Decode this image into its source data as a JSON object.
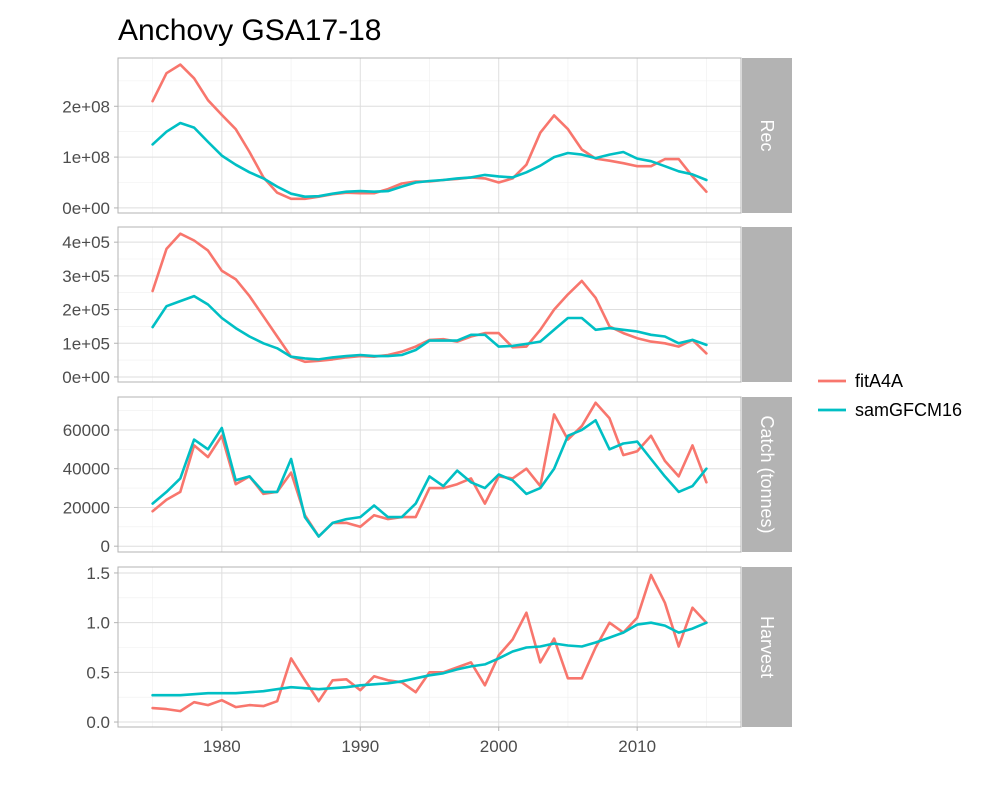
{
  "chart_data": {
    "type": "line",
    "title": "Anchovy GSA17-18",
    "legend": {
      "position": "right",
      "entries": [
        {
          "name": "fitA4A",
          "color": "#F8766D"
        },
        {
          "name": "samGFCM16",
          "color": "#00BFC4"
        }
      ]
    },
    "x": [
      1975,
      1976,
      1977,
      1978,
      1979,
      1980,
      1981,
      1982,
      1983,
      1984,
      1985,
      1986,
      1987,
      1988,
      1989,
      1990,
      1991,
      1992,
      1993,
      1994,
      1995,
      1996,
      1997,
      1998,
      1999,
      2000,
      2001,
      2002,
      2003,
      2004,
      2005,
      2006,
      2007,
      2008,
      2009,
      2010,
      2011,
      2012,
      2013,
      2014,
      2015
    ],
    "x_ticks": [
      1980,
      1990,
      2000,
      2010
    ],
    "x_tick_labels": [
      "1980",
      "1990",
      "2000",
      "2010"
    ],
    "xlim": [
      1972.5,
      2017.5
    ],
    "grid": true,
    "panels": [
      {
        "strip_label": "Rec",
        "ylim": [
          -10000000,
          295000000
        ],
        "y_ticks": [
          0,
          100000000,
          200000000
        ],
        "y_tick_labels": [
          "0e+00",
          "1e+08",
          "2e+08"
        ],
        "series": [
          {
            "name": "fitA4A",
            "values": [
              210000000,
              265000000,
              282000000,
              255000000,
              212000000,
              183000000,
              155000000,
              110000000,
              60000000,
              30000000,
              18000000,
              18000000,
              22000000,
              27000000,
              30000000,
              29000000,
              29000000,
              37000000,
              48000000,
              52000000,
              52000000,
              55000000,
              57000000,
              60000000,
              58000000,
              50000000,
              58000000,
              85000000,
              148000000,
              182000000,
              155000000,
              115000000,
              97000000,
              93000000,
              88000000,
              82000000,
              82000000,
              96000000,
              96000000,
              62000000,
              32000000
            ]
          },
          {
            "name": "samGFCM16",
            "values": [
              125000000,
              150000000,
              167000000,
              158000000,
              130000000,
              103000000,
              85000000,
              70000000,
              58000000,
              42000000,
              28000000,
              22000000,
              23000000,
              28000000,
              32000000,
              33000000,
              32000000,
              33000000,
              42000000,
              50000000,
              53000000,
              55000000,
              58000000,
              60000000,
              65000000,
              62000000,
              60000000,
              70000000,
              83000000,
              100000000,
              108000000,
              105000000,
              98000000,
              105000000,
              110000000,
              97000000,
              92000000,
              82000000,
              72000000,
              66000000,
              55000000
            ]
          }
        ]
      },
      {
        "strip_label": "",
        "ylim": [
          -15000,
          445000
        ],
        "y_ticks": [
          0,
          100000,
          200000,
          300000,
          400000
        ],
        "y_tick_labels": [
          "0e+00",
          "1e+05",
          "2e+05",
          "3e+05",
          "4e+05"
        ],
        "series": [
          {
            "name": "fitA4A",
            "values": [
              255000,
              380000,
              425000,
              405000,
              375000,
              315000,
              290000,
              240000,
              180000,
              120000,
              60000,
              45000,
              48000,
              52000,
              58000,
              62000,
              60000,
              65000,
              75000,
              90000,
              110000,
              112000,
              105000,
              120000,
              130000,
              130000,
              88000,
              90000,
              140000,
              200000,
              245000,
              285000,
              235000,
              150000,
              130000,
              115000,
              105000,
              100000,
              90000,
              110000,
              70000
            ]
          },
          {
            "name": "samGFCM16",
            "values": [
              148000,
              210000,
              225000,
              240000,
              215000,
              175000,
              145000,
              120000,
              100000,
              85000,
              60000,
              55000,
              52000,
              58000,
              62000,
              65000,
              62000,
              62000,
              65000,
              80000,
              108000,
              108000,
              108000,
              125000,
              125000,
              90000,
              92000,
              98000,
              105000,
              140000,
              175000,
              175000,
              140000,
              145000,
              140000,
              135000,
              125000,
              120000,
              100000,
              110000,
              95000
            ]
          }
        ]
      },
      {
        "strip_label": "Catch (tonnes)",
        "ylim": [
          -3000,
          77000
        ],
        "y_ticks": [
          0,
          20000,
          40000,
          60000
        ],
        "y_tick_labels": [
          "0",
          "20000",
          "40000",
          "60000"
        ],
        "series": [
          {
            "name": "fitA4A",
            "values": [
              18000,
              24000,
              28000,
              52000,
              46000,
              57000,
              32000,
              36000,
              27000,
              28000,
              38000,
              16000,
              5000,
              12000,
              12000,
              10000,
              16000,
              14000,
              15000,
              15000,
              30000,
              30000,
              32000,
              35000,
              22000,
              36000,
              35000,
              40000,
              31000,
              68000,
              55000,
              62000,
              74000,
              66000,
              47000,
              49000,
              57000,
              44000,
              36000,
              52000,
              33000
            ]
          },
          {
            "name": "samGFCM16",
            "values": [
              22000,
              28000,
              35000,
              55000,
              50000,
              61000,
              34000,
              36000,
              28000,
              28000,
              45000,
              15000,
              5000,
              12000,
              14000,
              15000,
              21000,
              15000,
              15000,
              22000,
              36000,
              31000,
              39000,
              33000,
              30000,
              37000,
              34000,
              27000,
              30000,
              40000,
              57000,
              60000,
              65000,
              50000,
              53000,
              54000,
              45000,
              36000,
              28000,
              31000,
              40000
            ]
          }
        ]
      },
      {
        "strip_label": "Harvest",
        "ylim": [
          -0.05,
          1.56
        ],
        "y_ticks": [
          0,
          0.5,
          1.0,
          1.5
        ],
        "y_tick_labels": [
          "0.0",
          "0.5",
          "1.0",
          "1.5"
        ],
        "series": [
          {
            "name": "fitA4A",
            "values": [
              0.14,
              0.13,
              0.11,
              0.2,
              0.17,
              0.22,
              0.15,
              0.17,
              0.16,
              0.21,
              0.64,
              0.42,
              0.21,
              0.42,
              0.43,
              0.32,
              0.46,
              0.42,
              0.4,
              0.3,
              0.5,
              0.5,
              0.55,
              0.6,
              0.37,
              0.67,
              0.83,
              1.1,
              0.6,
              0.84,
              0.44,
              0.44,
              0.75,
              1.0,
              0.9,
              1.05,
              1.48,
              1.2,
              0.76,
              1.15,
              1.0
            ]
          },
          {
            "name": "samGFCM16",
            "values": [
              0.27,
              0.27,
              0.27,
              0.28,
              0.29,
              0.29,
              0.29,
              0.3,
              0.31,
              0.33,
              0.35,
              0.34,
              0.33,
              0.34,
              0.35,
              0.37,
              0.38,
              0.39,
              0.41,
              0.44,
              0.47,
              0.49,
              0.53,
              0.56,
              0.58,
              0.64,
              0.71,
              0.75,
              0.76,
              0.79,
              0.77,
              0.76,
              0.8,
              0.85,
              0.9,
              0.98,
              1.0,
              0.97,
              0.9,
              0.94,
              1.0
            ]
          }
        ]
      }
    ]
  }
}
